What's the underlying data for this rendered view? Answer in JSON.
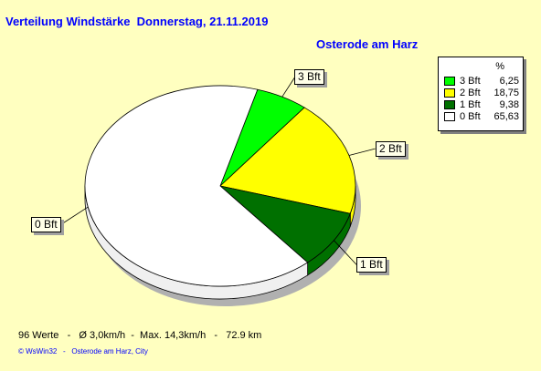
{
  "title": "Verteilung Windstärke  Donnerstag, 21.11.2019",
  "subtitle": "Osterode am Harz",
  "legend": {
    "header": "%"
  },
  "chart_data": {
    "type": "pie",
    "title": "Verteilung Windstärke  Donnerstag, 21.11.2019",
    "slices": [
      {
        "label": "3 Bft",
        "value": 6.25,
        "display": "6,25",
        "color": "#00ff00"
      },
      {
        "label": "2 Bft",
        "value": 18.75,
        "display": "18,75",
        "color": "#ffff00"
      },
      {
        "label": "1 Bft",
        "value": 9.38,
        "display": "9,38",
        "color": "#007000"
      },
      {
        "label": "0 Bft",
        "value": 65.63,
        "display": "65,63",
        "color": "#ffffff"
      }
    ],
    "legend_position": "top-right"
  },
  "footer": {
    "stats": "96 Werte   -   Ø 3,0km/h  -  Max. 14,3km/h   -   72.9 km",
    "credit": "© WsWin32   -   Osterode am Harz, City"
  }
}
